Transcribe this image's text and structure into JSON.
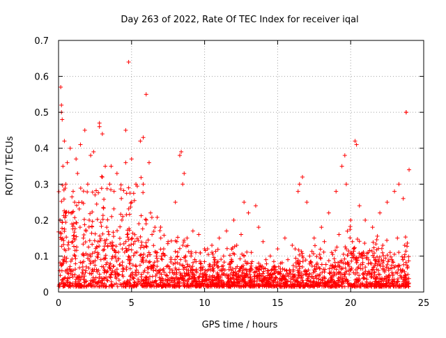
{
  "chart_data": {
    "type": "scatter",
    "title": "Day 263 of 2022, Rate Of TEC Index for receiver iqal",
    "xlabel": "GPS time / hours",
    "ylabel": "ROTI / TECUs",
    "xlim": [
      0,
      25
    ],
    "ylim": [
      0,
      0.7
    ],
    "xticks": [
      "0",
      "5",
      "10",
      "15",
      "20",
      "25"
    ],
    "yticks": [
      "0",
      "0.1",
      "0.2",
      "0.3",
      "0.4",
      "0.5",
      "0.6",
      "0.7"
    ],
    "grid": true,
    "marker": "+",
    "series_color": "#ff0000",
    "series": [
      {
        "x": [
          0.1,
          0.2,
          0.3,
          0.5,
          0.8,
          1.0,
          1.3,
          1.6,
          1.8,
          2.0,
          2.2,
          2.5,
          2.8,
          3.0,
          3.2,
          3.5,
          3.8,
          4.0,
          4.3,
          4.6,
          4.8,
          5.0,
          5.3,
          5.6,
          5.8,
          6.0,
          6.3,
          6.6,
          7.0,
          7.5,
          8.0,
          8.3,
          8.5,
          8.8,
          9.2,
          9.6,
          10.0,
          10.5,
          11.0,
          11.5,
          12.0,
          12.5,
          13.0,
          13.5,
          13.7,
          14.0,
          14.5,
          15.0,
          15.5,
          16.0,
          16.4,
          16.7,
          17.0,
          17.5,
          18.0,
          18.5,
          19.0,
          19.4,
          19.7,
          20.0,
          20.3,
          20.6,
          21.0,
          21.5,
          22.0,
          22.5,
          23.0,
          23.3,
          23.6,
          23.8,
          24.0,
          0.15,
          0.2,
          4.8,
          6.0,
          23.8,
          0.25,
          2.8,
          4.6,
          8.4,
          0.4,
          1.5,
          3.0,
          5.8,
          0.6,
          1.2,
          2.4,
          3.6,
          5.0,
          6.2,
          8.6,
          12.7,
          16.5,
          19.6,
          20.4,
          0.3,
          0.9,
          1.9,
          2.9,
          3.9,
          4.9,
          5.9,
          6.9,
          7.9,
          8.9,
          9.9,
          10.9,
          11.9,
          12.9,
          13.9,
          14.9,
          15.9,
          16.9,
          17.9,
          18.9,
          19.9,
          20.9,
          21.9,
          22.9,
          23.9,
          0.7,
          1.7,
          2.7,
          3.7,
          4.7,
          5.7,
          6.7,
          7.7,
          8.7,
          9.7,
          10.7,
          11.7,
          12.7,
          13.7,
          14.7,
          15.7,
          16.7,
          17.7,
          18.7,
          19.7,
          20.7,
          21.7,
          22.7,
          23.7,
          0.45,
          1.1,
          2.1,
          3.3,
          4.4,
          5.5,
          6.4,
          7.2,
          8.1,
          9.4,
          10.2,
          11.3,
          12.2,
          13.2,
          14.2,
          15.2,
          16.2,
          17.2,
          18.2,
          19.2,
          20.2,
          21.2,
          22.2,
          23.2
        ],
        "y": [
          0.2,
          0.5,
          0.35,
          0.3,
          0.4,
          0.28,
          0.33,
          0.25,
          0.45,
          0.3,
          0.38,
          0.27,
          0.46,
          0.32,
          0.35,
          0.3,
          0.28,
          0.33,
          0.26,
          0.36,
          0.29,
          0.25,
          0.3,
          0.42,
          0.3,
          0.2,
          0.22,
          0.18,
          0.15,
          0.14,
          0.25,
          0.38,
          0.3,
          0.15,
          0.17,
          0.16,
          0.12,
          0.13,
          0.15,
          0.17,
          0.2,
          0.16,
          0.22,
          0.24,
          0.18,
          0.14,
          0.1,
          0.12,
          0.15,
          0.13,
          0.28,
          0.32,
          0.25,
          0.15,
          0.18,
          0.22,
          0.28,
          0.35,
          0.3,
          0.2,
          0.42,
          0.24,
          0.2,
          0.18,
          0.22,
          0.25,
          0.28,
          0.3,
          0.26,
          0.5,
          0.34,
          0.57,
          0.52,
          0.64,
          0.55,
          0.5,
          0.48,
          0.47,
          0.45,
          0.39,
          0.42,
          0.41,
          0.44,
          0.43,
          0.36,
          0.37,
          0.39,
          0.35,
          0.37,
          0.36,
          0.33,
          0.25,
          0.3,
          0.38,
          0.41,
          0.08,
          0.06,
          0.07,
          0.09,
          0.05,
          0.08,
          0.06,
          0.04,
          0.05,
          0.06,
          0.04,
          0.05,
          0.04,
          0.06,
          0.03,
          0.04,
          0.05,
          0.06,
          0.05,
          0.07,
          0.05,
          0.04,
          0.06,
          0.05,
          0.07,
          0.12,
          0.15,
          0.14,
          0.12,
          0.16,
          0.13,
          0.1,
          0.09,
          0.1,
          0.08,
          0.09,
          0.08,
          0.1,
          0.08,
          0.07,
          0.09,
          0.1,
          0.08,
          0.11,
          0.12,
          0.1,
          0.09,
          0.11,
          0.13,
          0.22,
          0.25,
          0.2,
          0.18,
          0.21,
          0.19,
          0.16,
          0.12,
          0.14,
          0.11,
          0.12,
          0.1,
          0.13,
          0.11,
          0.09,
          0.08,
          0.12,
          0.1,
          0.14,
          0.16,
          0.12,
          0.11,
          0.13,
          0.15
        ]
      }
    ]
  }
}
